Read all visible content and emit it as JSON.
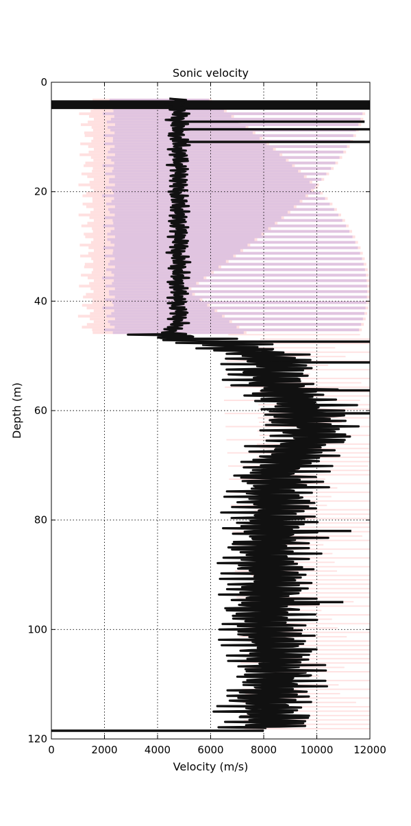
{
  "chart_data": {
    "type": "line",
    "title": "Sonic velocity",
    "xlabel": "Velocity (m/s)",
    "ylabel": "Depth (m)",
    "xlim": [
      0,
      12000
    ],
    "ylim": [
      0,
      120
    ],
    "y_inverted": true,
    "grid": true,
    "x_ticks": [
      "0",
      "2000",
      "4000",
      "6000",
      "8000",
      "10000",
      "12000"
    ],
    "y_ticks": [
      "0",
      "20",
      "40",
      "60",
      "80",
      "100",
      "120"
    ],
    "colors": {
      "main_trace": "#111111",
      "band_pink": "#ffd6d6",
      "band_purple": "#d8bde0",
      "band_blue": "#dcdcf5"
    },
    "series": [
      {
        "role": "main",
        "depth_m": [
          3,
          4,
          5,
          6,
          7,
          8,
          9,
          10,
          11,
          12,
          13,
          14,
          15,
          16,
          17,
          18,
          19,
          20,
          21,
          22,
          23,
          24,
          25,
          26,
          27,
          28,
          29,
          30,
          31,
          32,
          33,
          34,
          35,
          36,
          37,
          38,
          39,
          40,
          41,
          42,
          43,
          44,
          45,
          46,
          47,
          48,
          49,
          50,
          51,
          52,
          53,
          54,
          55,
          56,
          57,
          58,
          59,
          60,
          61,
          62,
          63,
          64,
          65,
          66,
          67,
          68,
          69,
          70,
          71,
          72,
          73,
          74,
          75,
          76,
          77,
          78,
          79,
          80,
          81,
          82,
          83,
          84,
          85,
          86,
          87,
          88,
          89,
          90,
          91,
          92,
          93,
          94,
          95,
          96,
          97,
          98,
          99,
          100,
          101,
          102,
          103,
          104,
          105,
          106,
          107,
          108,
          109,
          110,
          111,
          112,
          113,
          114,
          115,
          116,
          117,
          118
        ],
        "velocity_ms": [
          4800,
          4700,
          4750,
          4900,
          4650,
          4850,
          4800,
          4700,
          4900,
          4750,
          4800,
          4850,
          4700,
          4900,
          4750,
          4800,
          4850,
          4700,
          4800,
          4900,
          4750,
          4850,
          4800,
          4700,
          4900,
          4750,
          4800,
          4850,
          4700,
          4800,
          4900,
          4750,
          4850,
          4800,
          4700,
          4850,
          4750,
          4800,
          4650,
          4900,
          4750,
          4800,
          4600,
          4400,
          5200,
          6800,
          7400,
          8200,
          8000,
          8600,
          7800,
          8400,
          8200,
          9000,
          8800,
          9200,
          9600,
          9400,
          9800,
          9200,
          10000,
          9600,
          9800,
          9400,
          9000,
          9200,
          8800,
          9000,
          8600,
          8400,
          8800,
          8600,
          8200,
          8400,
          8300,
          8500,
          8200,
          8400,
          8300,
          8200,
          8600,
          8400,
          8100,
          8300,
          8200,
          8000,
          8200,
          8100,
          8300,
          8000,
          8200,
          8100,
          8400,
          8000,
          8300,
          8100,
          8200,
          8000,
          8200,
          8100,
          8300,
          8400,
          8200,
          8600,
          8400,
          8800,
          8500,
          8600,
          8400,
          8200,
          8000,
          8100,
          7900,
          8200,
          8300,
          8100
        ]
      }
    ],
    "spikes": [
      {
        "depth_m": 3.6,
        "velocity_ms": 12000
      },
      {
        "depth_m": 4.2,
        "velocity_ms": 12000
      },
      {
        "depth_m": 4.8,
        "velocity_ms": 12000
      },
      {
        "depth_m": 7.2,
        "velocity_ms": 11800
      },
      {
        "depth_m": 8.6,
        "velocity_ms": 12000
      },
      {
        "depth_m": 10.9,
        "velocity_ms": 12000
      },
      {
        "depth_m": 47.4,
        "velocity_ms": 12000
      },
      {
        "depth_m": 51.2,
        "velocity_ms": 12000
      },
      {
        "depth_m": 56.3,
        "velocity_ms": 12000
      },
      {
        "depth_m": 60.5,
        "velocity_ms": 12000
      },
      {
        "depth_m": 82.0,
        "velocity_ms": 11300
      },
      {
        "depth_m": 95.0,
        "velocity_ms": 11000
      },
      {
        "depth_m": 118.5,
        "velocity_ms": 2600
      }
    ]
  }
}
